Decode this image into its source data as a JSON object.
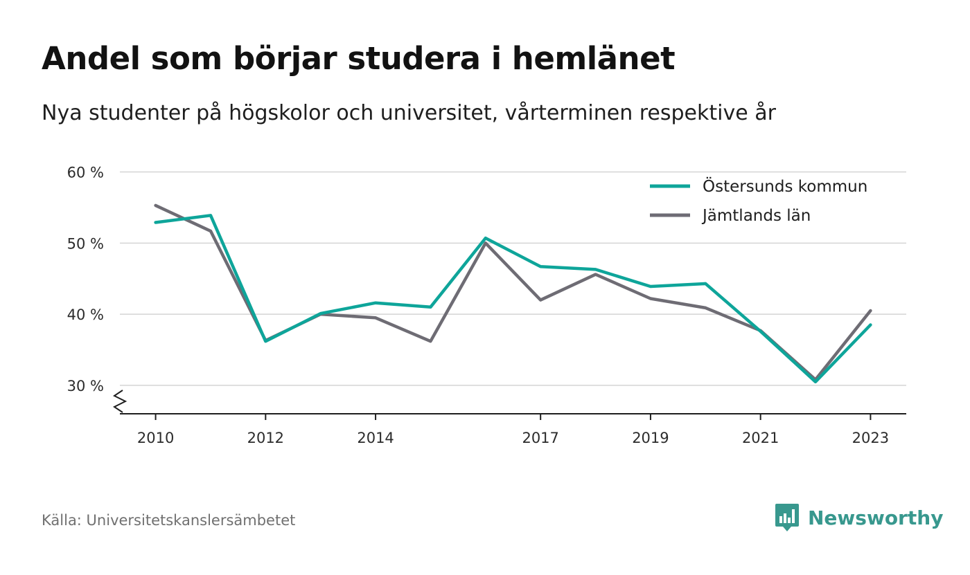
{
  "header": {
    "title": "Andel som börjar studera i hemlänet",
    "subtitle": "Nya studenter på högskolor och universitet, vårterminen respektive år"
  },
  "footer": {
    "source": "Källa: Universitetskanslersämbetet",
    "brand": "Newsworthy",
    "brand_icon": "bar-chart-speech-bubble-icon",
    "brand_color": "#38988e"
  },
  "chart_data": {
    "type": "line",
    "x": [
      2010,
      2011,
      2012,
      2013,
      2014,
      2015,
      2016,
      2017,
      2018,
      2019,
      2020,
      2021,
      2022,
      2023
    ],
    "xticks": [
      2010,
      2012,
      2014,
      2017,
      2019,
      2021,
      2023
    ],
    "xtick_labels": [
      "2010",
      "2012",
      "2014",
      "2017",
      "2019",
      "2021",
      "2023"
    ],
    "yticks": [
      30,
      40,
      50,
      60
    ],
    "ytick_labels": [
      "30 %",
      "40 %",
      "50 %",
      "60 %"
    ],
    "ylim": [
      26,
      62
    ],
    "xlim": [
      2009.35,
      2023.65
    ],
    "grid": true,
    "legend_position": "top-right",
    "axis_break": true,
    "series": [
      {
        "name": "Östersunds kommun",
        "color": "#0ea59a",
        "values": [
          52.9,
          53.9,
          36.2,
          40.1,
          41.6,
          41.0,
          50.7,
          46.7,
          46.3,
          43.9,
          44.3,
          37.6,
          30.5,
          38.5
        ]
      },
      {
        "name": "Jämtlands län",
        "color": "#6e6c74",
        "values": [
          55.3,
          51.7,
          36.3,
          40.0,
          39.5,
          36.2,
          50.0,
          42.0,
          45.6,
          42.2,
          40.9,
          37.7,
          30.8,
          40.5
        ]
      }
    ]
  }
}
